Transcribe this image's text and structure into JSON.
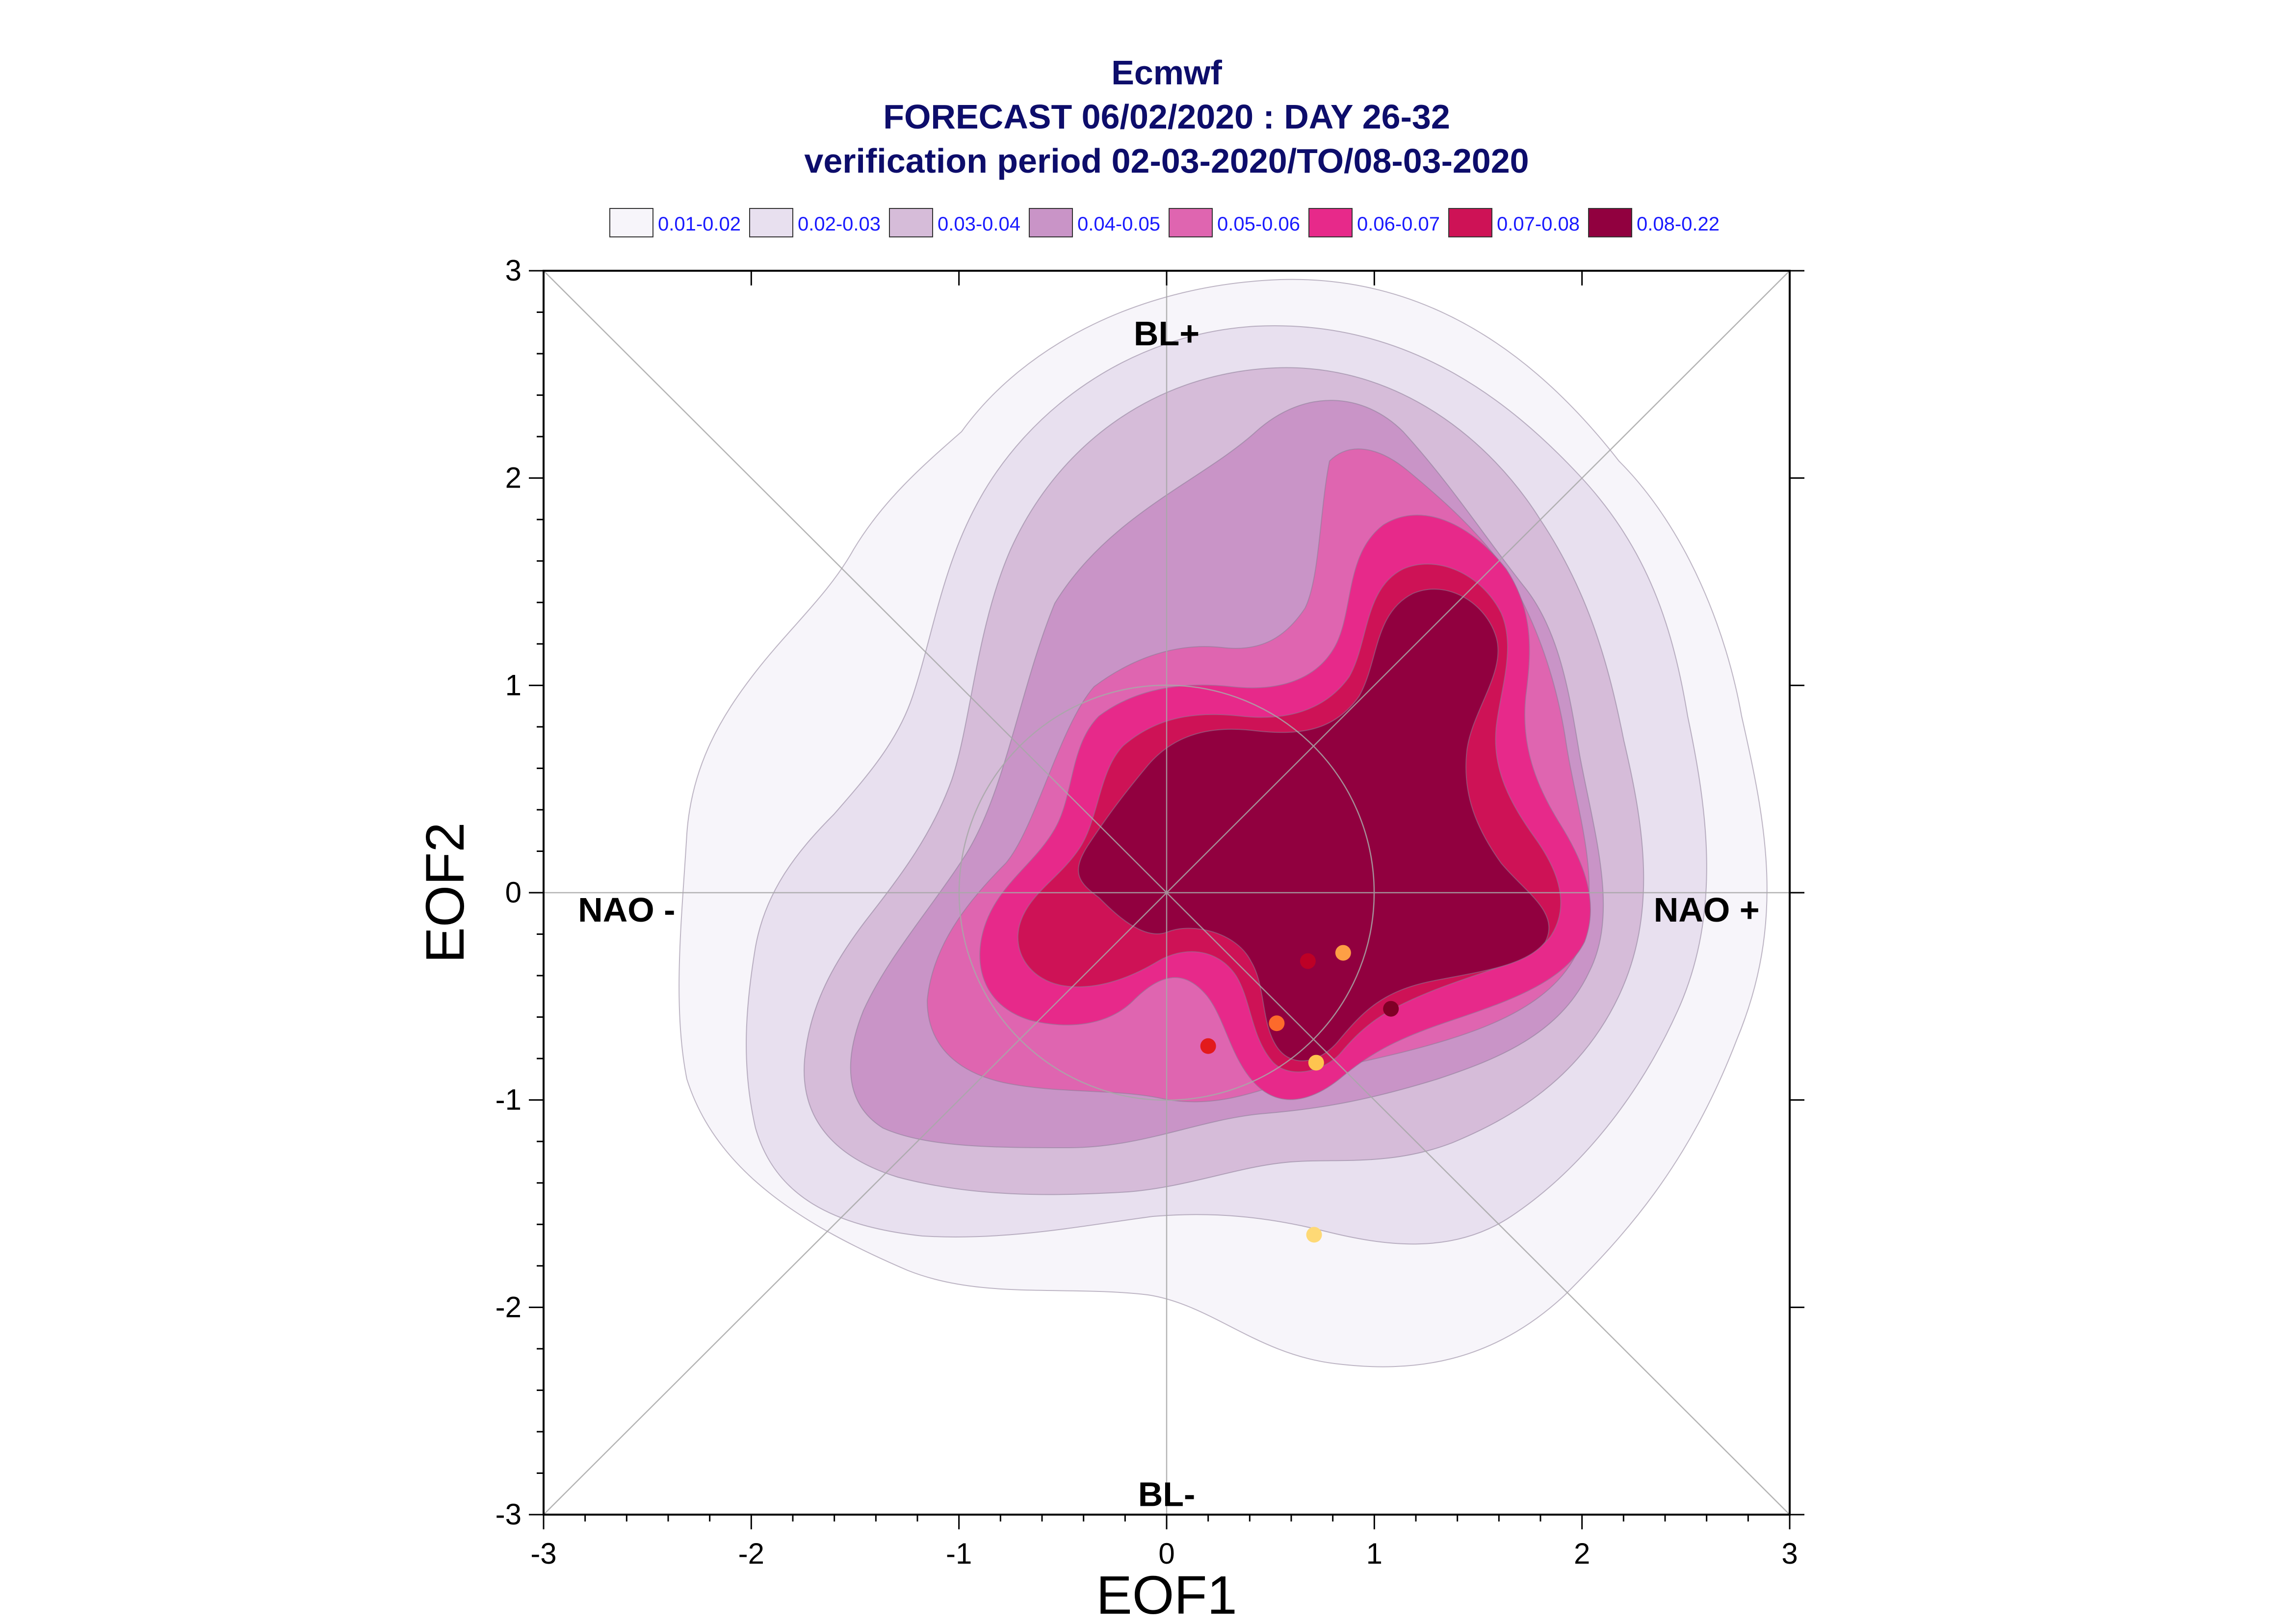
{
  "chart_data": {
    "type": "contour",
    "title": "Ecmwf",
    "subtitle": "FORECAST 06/02/2020 : DAY 26-32",
    "subtitle2": "verification period 02-03-2020/TO/08-03-2020",
    "xlabel": "EOF1",
    "ylabel": "EOF2",
    "xlim": [
      -3,
      3
    ],
    "ylim": [
      -3,
      3
    ],
    "xticks": [
      "-3",
      "-2",
      "-1",
      "0",
      "1",
      "2",
      "3"
    ],
    "yticks": [
      "-3",
      "-2",
      "-1",
      "0",
      "1",
      "2",
      "3"
    ],
    "legend_position": "top",
    "legend": [
      {
        "label": "0.01-0.02",
        "color": "#f7f5fa"
      },
      {
        "label": "0.02-0.03",
        "color": "#e8e0ef"
      },
      {
        "label": "0.03-0.04",
        "color": "#d6bcd9"
      },
      {
        "label": "0.04-0.05",
        "color": "#c994c7"
      },
      {
        "label": "0.05-0.06",
        "color": "#df65b0"
      },
      {
        "label": "0.06-0.07",
        "color": "#e7298a"
      },
      {
        "label": "0.07-0.08",
        "color": "#ce1256"
      },
      {
        "label": "0.08-0.22",
        "color": "#91003f"
      }
    ],
    "regime_labels": [
      {
        "text": "BL+",
        "x": 0,
        "y": 2.7
      },
      {
        "text": "BL-",
        "x": 0,
        "y": -2.9
      },
      {
        "text": "NAO -",
        "x": -2.6,
        "y": -0.08
      },
      {
        "text": "NAO +",
        "x": 2.6,
        "y": -0.08
      }
    ],
    "points": [
      {
        "x": 0.2,
        "y": -0.74,
        "color": "#e31a1c"
      },
      {
        "x": 0.53,
        "y": -0.63,
        "color": "#fd6a2b"
      },
      {
        "x": 0.68,
        "y": -0.33,
        "color": "#bd0026"
      },
      {
        "x": 0.85,
        "y": -0.29,
        "color": "#fe9f45"
      },
      {
        "x": 0.72,
        "y": -0.82,
        "color": "#fec44f"
      },
      {
        "x": 1.08,
        "y": -0.56,
        "color": "#800026"
      },
      {
        "x": 0.71,
        "y": -1.65,
        "color": "#fed976"
      }
    ],
    "circle_radius": 1,
    "grid": "crosshair-and-diagonals"
  }
}
